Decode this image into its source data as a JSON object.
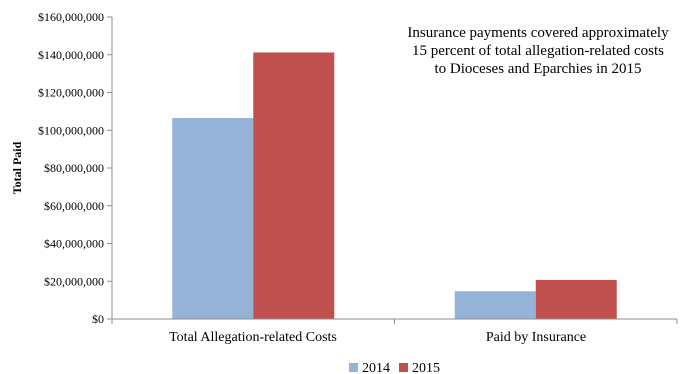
{
  "chart_data": {
    "type": "bar",
    "categories": [
      "Total Allegation-related Costs",
      "Paid by Insurance"
    ],
    "series": [
      {
        "name": "2014",
        "values": [
          106500000,
          14700000
        ],
        "color": "#95b3d7"
      },
      {
        "name": "2015",
        "values": [
          141200000,
          20700000
        ],
        "color": "#c0504d"
      }
    ],
    "ylabel": "Total Paid",
    "ylim": [
      0,
      160000000
    ],
    "yticks": [
      "$0",
      "$20,000,000",
      "$40,000,000",
      "$60,000,000",
      "$80,000,000",
      "$100,000,000",
      "$120,000,000",
      "$140,000,000",
      "$160,000,000"
    ],
    "annotation": [
      "Insurance payments covered approximately",
      "15 percent of total allegation-related costs",
      "to Dioceses and Eparchies in 2015"
    ],
    "grid": false,
    "legend_position": "bottom"
  }
}
